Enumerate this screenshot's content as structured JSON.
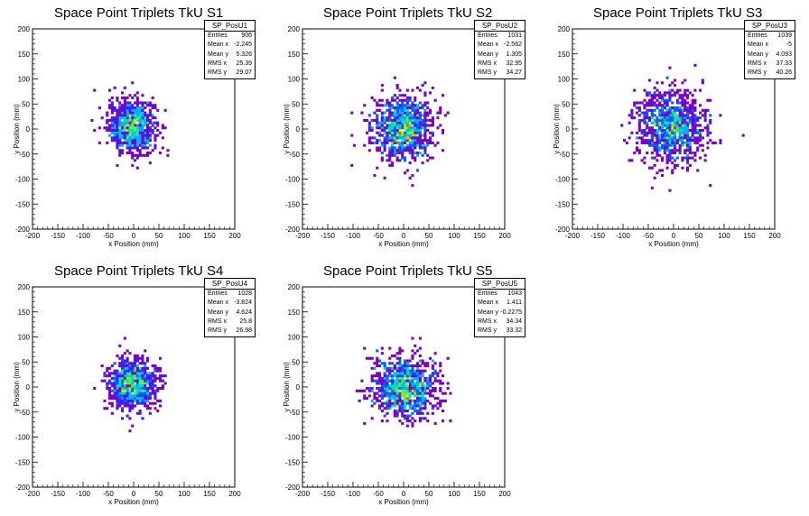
{
  "chart_data": [
    {
      "type": "heatmap",
      "title": "Space Point Triplets TkU S1",
      "xlabel": "x Position (mm)",
      "ylabel": "y Position (mm)",
      "xlim": [
        -200,
        200
      ],
      "ylim": [
        -200,
        200
      ],
      "xticks": [
        "-200",
        "-150",
        "-100",
        "-50",
        "0",
        "50",
        "100",
        "150",
        "200"
      ],
      "yticks": [
        "-200",
        "-150",
        "-100",
        "-50",
        "0",
        "50",
        "100",
        "150",
        "200"
      ],
      "stats": {
        "name": "SP_PosU1",
        "rows": [
          [
            "Entries",
            "906"
          ],
          [
            "Mean x",
            "-2.245"
          ],
          [
            "Mean y",
            "5.326"
          ],
          [
            "RMS x",
            "25.39"
          ],
          [
            "RMS y",
            "29.07"
          ]
        ]
      },
      "entries": 906,
      "mean_x": -2.245,
      "mean_y": 5.326,
      "rms_x": 25.39,
      "rms_y": 29.07,
      "colormap": [
        "#7b00c8",
        "#3a1cff",
        "#0060ff",
        "#00b0ff",
        "#00e0c0",
        "#60f040",
        "#d0f000",
        "#ffc000",
        "#ff5000",
        "#e00000"
      ]
    },
    {
      "type": "heatmap",
      "title": "Space Point Triplets TkU S2",
      "xlabel": "x Position (mm)",
      "ylabel": "y Position (mm)",
      "xlim": [
        -200,
        200
      ],
      "ylim": [
        -200,
        200
      ],
      "xticks": [
        "-200",
        "-150",
        "-100",
        "-50",
        "0",
        "50",
        "100",
        "150",
        "200"
      ],
      "yticks": [
        "-200",
        "-150",
        "-100",
        "-50",
        "0",
        "50",
        "100",
        "150",
        "200"
      ],
      "stats": {
        "name": "SP_PosU2",
        "rows": [
          [
            "Entries",
            "1031"
          ],
          [
            "Mean x",
            "-2.562"
          ],
          [
            "Mean y",
            "1.305"
          ],
          [
            "RMS x",
            "32.95"
          ],
          [
            "RMS y",
            "34.27"
          ]
        ]
      },
      "entries": 1031,
      "mean_x": -2.562,
      "mean_y": 1.305,
      "rms_x": 32.95,
      "rms_y": 34.27,
      "colormap": [
        "#7b00c8",
        "#3a1cff",
        "#0060ff",
        "#00b0ff",
        "#00e0c0",
        "#60f040",
        "#d0f000",
        "#ffc000",
        "#ff5000",
        "#e00000"
      ]
    },
    {
      "type": "heatmap",
      "title": "Space Point Triplets TkU S3",
      "xlabel": "x Position (mm)",
      "ylabel": "y Position (mm)",
      "xlim": [
        -200,
        200
      ],
      "ylim": [
        -200,
        200
      ],
      "xticks": [
        "-200",
        "-150",
        "-100",
        "-50",
        "0",
        "50",
        "100",
        "150",
        "200"
      ],
      "yticks": [
        "-200",
        "-150",
        "-100",
        "-50",
        "0",
        "50",
        "100",
        "150",
        "200"
      ],
      "stats": {
        "name": "SP_PosU3",
        "rows": [
          [
            "Entries",
            "1039"
          ],
          [
            "Mean x",
            "-5"
          ],
          [
            "Mean y",
            "4.093"
          ],
          [
            "RMS x",
            "37.33"
          ],
          [
            "RMS y",
            "40.26"
          ]
        ]
      },
      "entries": 1039,
      "mean_x": -5,
      "mean_y": 4.093,
      "rms_x": 37.33,
      "rms_y": 40.26,
      "colormap": [
        "#7b00c8",
        "#3a1cff",
        "#0060ff",
        "#00b0ff",
        "#00e0c0",
        "#60f040",
        "#d0f000",
        "#ffc000",
        "#ff5000",
        "#e00000"
      ]
    },
    {
      "type": "heatmap",
      "title": "Space Point Triplets TkU S4",
      "xlabel": "x Position (mm)",
      "ylabel": "y Position (mm)",
      "xlim": [
        -200,
        200
      ],
      "ylim": [
        -200,
        200
      ],
      "xticks": [
        "-200",
        "-150",
        "-100",
        "-50",
        "0",
        "50",
        "100",
        "150",
        "200"
      ],
      "yticks": [
        "-200",
        "-150",
        "-100",
        "-50",
        "0",
        "50",
        "100",
        "150",
        "200"
      ],
      "stats": {
        "name": "SP_PosU4",
        "rows": [
          [
            "Entries",
            "1028"
          ],
          [
            "Mean x",
            "-3.824"
          ],
          [
            "Mean y",
            "4.624"
          ],
          [
            "RMS x",
            "25.8"
          ],
          [
            "RMS y",
            "26.98"
          ]
        ]
      },
      "entries": 1028,
      "mean_x": -3.824,
      "mean_y": 4.624,
      "rms_x": 25.8,
      "rms_y": 26.98,
      "colormap": [
        "#7b00c8",
        "#3a1cff",
        "#0060ff",
        "#00b0ff",
        "#00e0c0",
        "#60f040",
        "#d0f000",
        "#ffc000",
        "#ff5000",
        "#e00000"
      ]
    },
    {
      "type": "heatmap",
      "title": "Space Point Triplets TkU S5",
      "xlabel": "x Position (mm)",
      "ylabel": "y Position (mm)",
      "xlim": [
        -200,
        200
      ],
      "ylim": [
        -200,
        200
      ],
      "xticks": [
        "-200",
        "-150",
        "-100",
        "-50",
        "0",
        "50",
        "100",
        "150",
        "200"
      ],
      "yticks": [
        "-200",
        "-150",
        "-100",
        "-50",
        "0",
        "50",
        "100",
        "150",
        "200"
      ],
      "stats": {
        "name": "SP_PosU5",
        "rows": [
          [
            "Entries",
            "1043"
          ],
          [
            "Mean x",
            "1.411"
          ],
          [
            "Mean y",
            "-0.2275"
          ],
          [
            "RMS x",
            "34.34"
          ],
          [
            "RMS y",
            "33.32"
          ]
        ]
      },
      "entries": 1043,
      "mean_x": 1.411,
      "mean_y": -0.2275,
      "rms_x": 34.34,
      "rms_y": 33.32,
      "colormap": [
        "#7b00c8",
        "#3a1cff",
        "#0060ff",
        "#00b0ff",
        "#00e0c0",
        "#60f040",
        "#d0f000",
        "#ffc000",
        "#ff5000",
        "#e00000"
      ]
    }
  ]
}
